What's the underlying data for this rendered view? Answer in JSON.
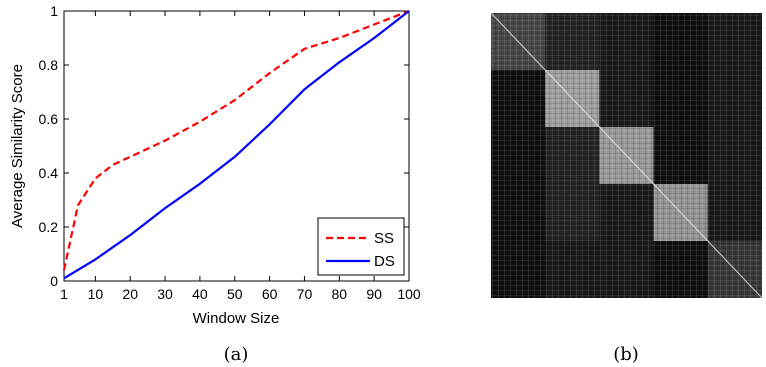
{
  "panels": {
    "a": {
      "caption": "(a)"
    },
    "b": {
      "caption": "(b)"
    }
  },
  "chart_data": [
    {
      "type": "line",
      "title": "",
      "xlabel": "Window Size",
      "ylabel": "Average Similarity Score",
      "xlim": [
        1,
        100
      ],
      "ylim": [
        0,
        1
      ],
      "xticks": [
        1,
        10,
        20,
        30,
        40,
        50,
        60,
        70,
        80,
        90,
        100
      ],
      "yticks": [
        0,
        0.2,
        0.4,
        0.6,
        0.8,
        1
      ],
      "grid": false,
      "legend_position": "bottom-right",
      "series": [
        {
          "name": "SS",
          "color": "#ff0000",
          "style": "dashed",
          "x": [
            1,
            5,
            10,
            15,
            20,
            30,
            40,
            50,
            60,
            70,
            80,
            90,
            100
          ],
          "y": [
            0.04,
            0.28,
            0.38,
            0.43,
            0.46,
            0.52,
            0.59,
            0.67,
            0.77,
            0.86,
            0.9,
            0.95,
            1.0
          ]
        },
        {
          "name": "DS",
          "color": "#0000ff",
          "style": "solid",
          "x": [
            1,
            10,
            20,
            30,
            40,
            50,
            60,
            70,
            80,
            90,
            100
          ],
          "y": [
            0.01,
            0.08,
            0.17,
            0.27,
            0.36,
            0.46,
            0.58,
            0.71,
            0.81,
            0.9,
            1.0
          ]
        }
      ]
    },
    {
      "type": "heatmap",
      "title": "",
      "description_blocks": 5,
      "block_brightness": [
        0.28,
        0.62,
        0.6,
        0.58,
        0.22
      ],
      "colormap": "gray",
      "diagonal": true
    }
  ]
}
